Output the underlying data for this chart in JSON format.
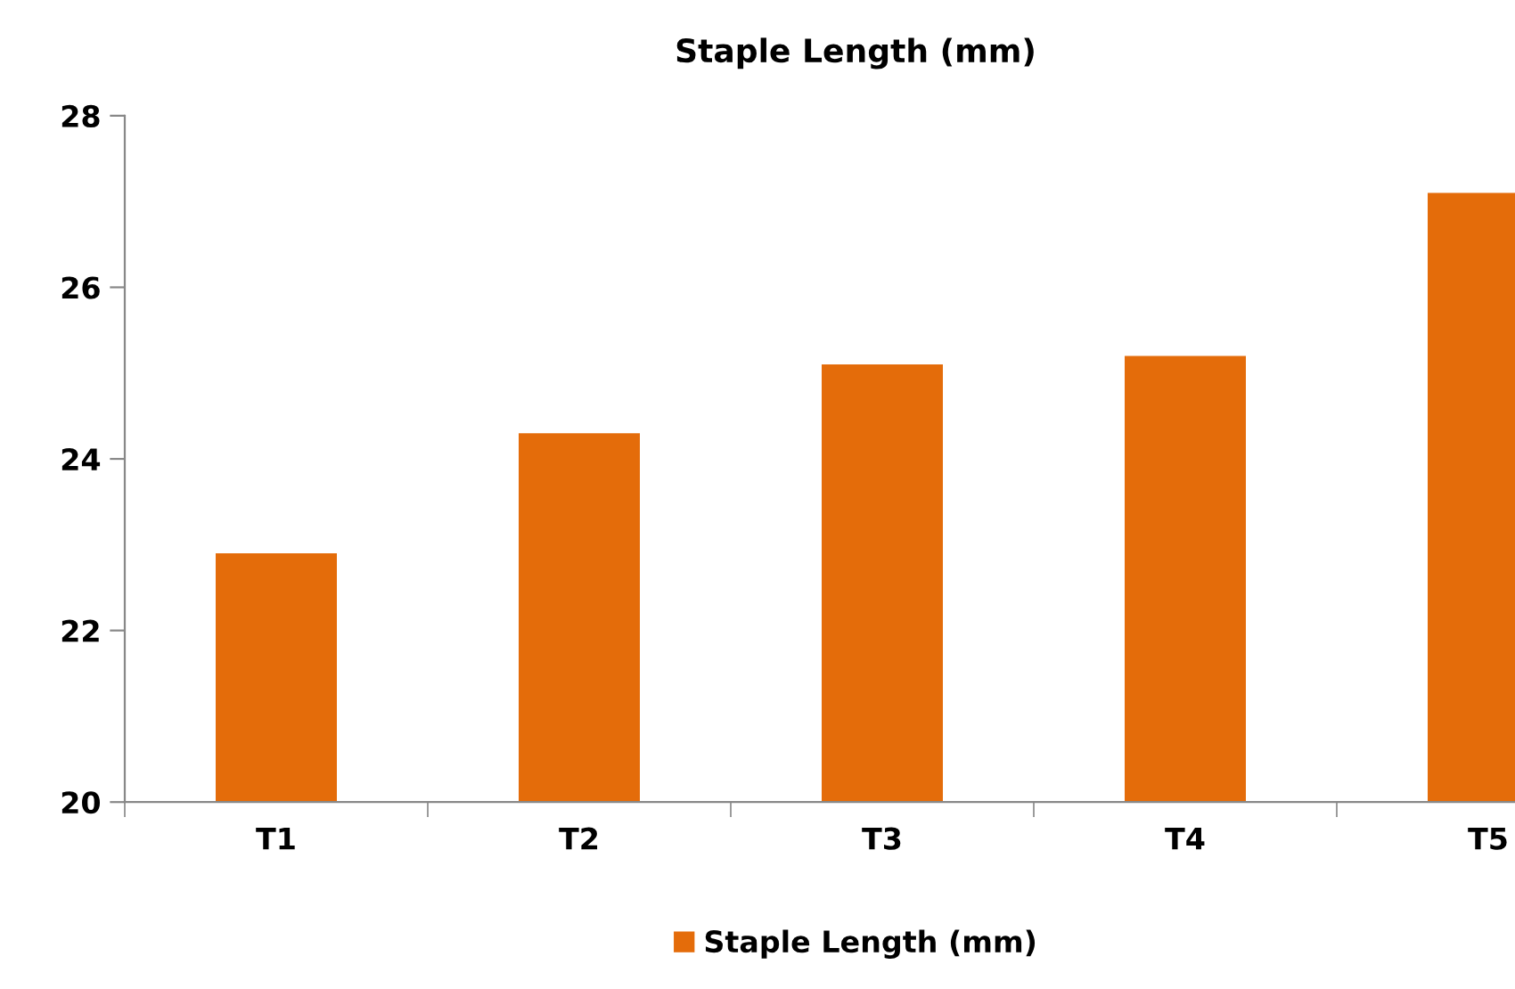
{
  "chart_data": {
    "type": "bar",
    "title": "Staple Length (mm)",
    "categories": [
      "T1",
      "T2",
      "T3",
      "T4",
      "T5"
    ],
    "series": [
      {
        "name": "Staple Length (mm)",
        "color": "#e46c0a",
        "values": [
          22.9,
          24.3,
          25.1,
          25.2,
          27.1
        ]
      }
    ],
    "ylim": [
      20,
      28
    ],
    "yticks": [
      20,
      22,
      24,
      26,
      28
    ],
    "grid": false,
    "legend": "bottom"
  }
}
